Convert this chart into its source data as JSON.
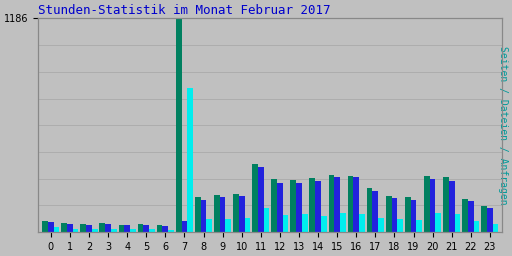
{
  "title": "Stunden-Statistik im Monat Februar 2017",
  "ylabel": "Seiten / Dateien / Anfragen",
  "hours": [
    "0",
    "1",
    "2",
    "3",
    "4",
    "5",
    "6",
    "7",
    "8",
    "9",
    "10",
    "11",
    "12",
    "13",
    "14",
    "15",
    "16",
    "17",
    "18",
    "19",
    "20",
    "21",
    "22",
    "23"
  ],
  "seiten": [
    60,
    50,
    44,
    48,
    42,
    44,
    40,
    1186,
    195,
    205,
    210,
    380,
    295,
    290,
    300,
    315,
    310,
    245,
    200,
    195,
    310,
    305,
    185,
    145
  ],
  "dateien": [
    55,
    46,
    40,
    43,
    37,
    40,
    35,
    60,
    180,
    195,
    200,
    360,
    275,
    275,
    285,
    305,
    305,
    230,
    190,
    180,
    295,
    285,
    170,
    135
  ],
  "anfragen": [
    26,
    20,
    18,
    20,
    16,
    18,
    14,
    800,
    75,
    75,
    80,
    135,
    95,
    100,
    88,
    105,
    100,
    80,
    72,
    68,
    105,
    100,
    60,
    45
  ],
  "seiten_color": "#008060",
  "dateien_color": "#2222DD",
  "anfragen_color": "#00EEEE",
  "bg_color": "#C0C0C0",
  "title_color": "#0000CC",
  "ylabel_color": "#009999",
  "ymax": 1186,
  "grid_color": "#AAAAAA",
  "grid_lines": 8,
  "title_fontsize": 9,
  "axis_fontsize": 7
}
